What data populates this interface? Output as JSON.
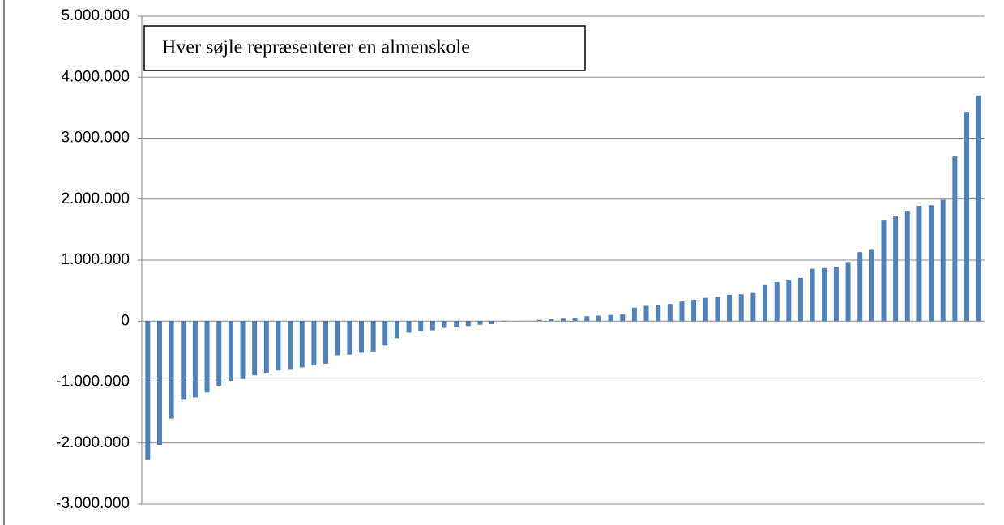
{
  "chart_data": {
    "type": "bar",
    "annotation": "Hver søjle repræsenterer en almenskole",
    "values": [
      -2280000,
      -2030000,
      -1600000,
      -1290000,
      -1250000,
      -1170000,
      -1060000,
      -980000,
      -950000,
      -890000,
      -860000,
      -810000,
      -800000,
      -760000,
      -730000,
      -700000,
      -560000,
      -550000,
      -520000,
      -500000,
      -400000,
      -280000,
      -190000,
      -170000,
      -150000,
      -110000,
      -90000,
      -80000,
      -60000,
      -50000,
      -10000,
      -5000,
      5000,
      20000,
      30000,
      40000,
      50000,
      80000,
      90000,
      100000,
      110000,
      220000,
      250000,
      260000,
      280000,
      320000,
      350000,
      380000,
      400000,
      430000,
      440000,
      460000,
      590000,
      640000,
      680000,
      710000,
      860000,
      870000,
      890000,
      970000,
      1130000,
      1180000,
      1650000,
      1730000,
      1800000,
      1890000,
      1900000,
      1990000,
      2700000,
      3430000,
      3700000
    ],
    "color": "#4f81bd",
    "ylim": [
      -3000000,
      5000000
    ],
    "yticks": [
      {
        "value": -3000000,
        "label": "-3.000.000"
      },
      {
        "value": -2000000,
        "label": "-2.000.000"
      },
      {
        "value": -1000000,
        "label": "-1.000.000"
      },
      0,
      {
        "value": 1000000,
        "label": "1.000.000"
      },
      {
        "value": 2000000,
        "label": "2.000.000"
      },
      {
        "value": 3000000,
        "label": "3.000.000"
      },
      {
        "value": 4000000,
        "label": "4.000.000"
      },
      {
        "value": 5000000,
        "label": "5.000.000"
      }
    ],
    "grid": true
  }
}
